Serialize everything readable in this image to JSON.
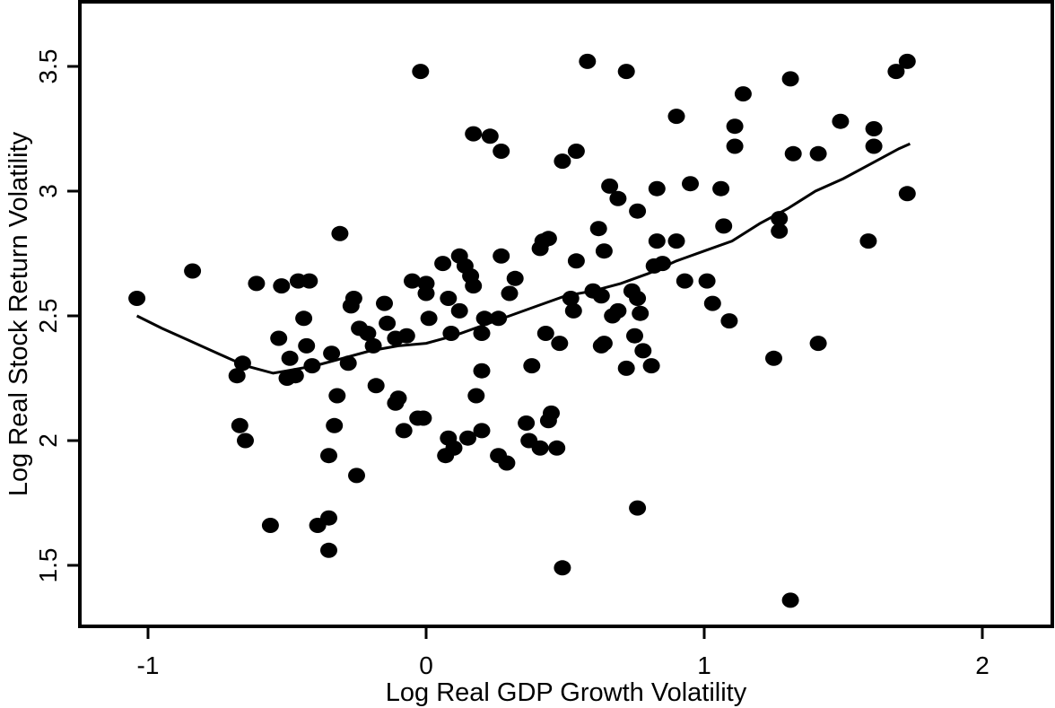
{
  "chart_data": {
    "type": "scatter",
    "title": "",
    "xlabel": "Log Real GDP Growth Volatility",
    "ylabel": "Log Real Stock Return Volatility",
    "xlim": [
      -1.25,
      2.25
    ],
    "ylim": [
      1.3,
      3.75
    ],
    "xticks": [
      -1,
      0,
      1,
      2
    ],
    "xtick_labels": [
      "-1",
      "0",
      "1",
      "2"
    ],
    "yticks": [
      1.5,
      2,
      2.5,
      3,
      3.5
    ],
    "ytick_labels": [
      "1.5",
      "2",
      "2.5",
      "3",
      "3.5"
    ],
    "grid": false,
    "legend": "none",
    "marker_color": "#000000",
    "points": [
      [
        -1.04,
        2.57
      ],
      [
        -0.84,
        2.68
      ],
      [
        -0.68,
        2.26
      ],
      [
        -0.67,
        2.06
      ],
      [
        -0.66,
        2.31
      ],
      [
        -0.65,
        2.0
      ],
      [
        -0.61,
        2.63
      ],
      [
        -0.56,
        1.66
      ],
      [
        -0.53,
        2.41
      ],
      [
        -0.52,
        2.62
      ],
      [
        -0.5,
        2.25
      ],
      [
        -0.49,
        2.33
      ],
      [
        -0.47,
        2.26
      ],
      [
        -0.46,
        2.64
      ],
      [
        -0.44,
        2.49
      ],
      [
        -0.43,
        2.38
      ],
      [
        -0.42,
        2.64
      ],
      [
        -0.41,
        2.3
      ],
      [
        -0.39,
        1.66
      ],
      [
        -0.35,
        1.94
      ],
      [
        -0.35,
        1.69
      ],
      [
        -0.35,
        1.56
      ],
      [
        -0.34,
        2.35
      ],
      [
        -0.33,
        2.06
      ],
      [
        -0.32,
        2.18
      ],
      [
        -0.31,
        2.83
      ],
      [
        -0.28,
        2.31
      ],
      [
        -0.27,
        2.54
      ],
      [
        -0.26,
        2.57
      ],
      [
        -0.25,
        1.86
      ],
      [
        -0.24,
        2.45
      ],
      [
        -0.21,
        2.43
      ],
      [
        -0.19,
        2.38
      ],
      [
        -0.18,
        2.22
      ],
      [
        -0.15,
        2.55
      ],
      [
        -0.14,
        2.47
      ],
      [
        -0.11,
        2.41
      ],
      [
        -0.11,
        2.15
      ],
      [
        -0.1,
        2.17
      ],
      [
        -0.08,
        2.04
      ],
      [
        -0.07,
        2.42
      ],
      [
        -0.05,
        2.64
      ],
      [
        -0.03,
        2.09
      ],
      [
        -0.02,
        3.48
      ],
      [
        -0.01,
        2.09
      ],
      [
        0.0,
        2.63
      ],
      [
        0.0,
        2.59
      ],
      [
        0.01,
        2.49
      ],
      [
        0.06,
        2.71
      ],
      [
        0.07,
        1.94
      ],
      [
        0.08,
        2.01
      ],
      [
        0.08,
        2.57
      ],
      [
        0.09,
        2.43
      ],
      [
        0.1,
        1.97
      ],
      [
        0.12,
        2.52
      ],
      [
        0.12,
        2.74
      ],
      [
        0.14,
        2.7
      ],
      [
        0.15,
        2.01
      ],
      [
        0.16,
        2.66
      ],
      [
        0.17,
        2.62
      ],
      [
        0.17,
        3.23
      ],
      [
        0.18,
        2.18
      ],
      [
        0.2,
        2.04
      ],
      [
        0.2,
        2.43
      ],
      [
        0.2,
        2.28
      ],
      [
        0.21,
        2.49
      ],
      [
        0.23,
        3.22
      ],
      [
        0.26,
        2.49
      ],
      [
        0.26,
        1.94
      ],
      [
        0.27,
        2.74
      ],
      [
        0.27,
        3.16
      ],
      [
        0.29,
        1.91
      ],
      [
        0.3,
        2.59
      ],
      [
        0.32,
        2.65
      ],
      [
        0.36,
        2.07
      ],
      [
        0.37,
        2.0
      ],
      [
        0.38,
        2.3
      ],
      [
        0.41,
        1.97
      ],
      [
        0.41,
        2.77
      ],
      [
        0.42,
        2.8
      ],
      [
        0.43,
        2.43
      ],
      [
        0.44,
        2.81
      ],
      [
        0.44,
        2.08
      ],
      [
        0.45,
        2.11
      ],
      [
        0.47,
        1.97
      ],
      [
        0.48,
        2.39
      ],
      [
        0.49,
        1.49
      ],
      [
        0.49,
        3.12
      ],
      [
        0.52,
        2.57
      ],
      [
        0.53,
        2.52
      ],
      [
        0.54,
        2.72
      ],
      [
        0.54,
        3.16
      ],
      [
        0.58,
        3.52
      ],
      [
        0.6,
        2.6
      ],
      [
        0.62,
        2.85
      ],
      [
        0.63,
        2.58
      ],
      [
        0.63,
        2.38
      ],
      [
        0.64,
        2.76
      ],
      [
        0.64,
        2.39
      ],
      [
        0.66,
        3.02
      ],
      [
        0.67,
        2.5
      ],
      [
        0.69,
        2.97
      ],
      [
        0.69,
        2.52
      ],
      [
        0.72,
        3.48
      ],
      [
        0.72,
        2.29
      ],
      [
        0.74,
        2.6
      ],
      [
        0.75,
        2.42
      ],
      [
        0.76,
        2.57
      ],
      [
        0.76,
        2.92
      ],
      [
        0.76,
        1.73
      ],
      [
        0.77,
        2.51
      ],
      [
        0.78,
        2.36
      ],
      [
        0.81,
        2.3
      ],
      [
        0.82,
        2.7
      ],
      [
        0.83,
        2.8
      ],
      [
        0.83,
        3.01
      ],
      [
        0.85,
        2.71
      ],
      [
        0.9,
        3.3
      ],
      [
        0.9,
        2.8
      ],
      [
        0.93,
        2.64
      ],
      [
        0.95,
        3.03
      ],
      [
        1.01,
        2.64
      ],
      [
        1.03,
        2.55
      ],
      [
        1.06,
        3.01
      ],
      [
        1.07,
        2.86
      ],
      [
        1.09,
        2.48
      ],
      [
        1.11,
        3.26
      ],
      [
        1.11,
        3.18
      ],
      [
        1.14,
        3.39
      ],
      [
        1.25,
        2.33
      ],
      [
        1.27,
        2.89
      ],
      [
        1.27,
        2.84
      ],
      [
        1.31,
        3.45
      ],
      [
        1.31,
        1.36
      ],
      [
        1.32,
        3.15
      ],
      [
        1.41,
        3.15
      ],
      [
        1.41,
        2.39
      ],
      [
        1.49,
        3.28
      ],
      [
        1.59,
        2.8
      ],
      [
        1.61,
        3.25
      ],
      [
        1.61,
        3.18
      ],
      [
        1.69,
        3.48
      ],
      [
        1.73,
        3.52
      ],
      [
        1.73,
        2.99
      ]
    ],
    "smoother": {
      "name": "",
      "x": [
        -1.04,
        -0.95,
        -0.85,
        -0.75,
        -0.65,
        -0.55,
        -0.5,
        -0.4,
        -0.3,
        -0.2,
        -0.1,
        0.0,
        0.1,
        0.2,
        0.3,
        0.4,
        0.5,
        0.6,
        0.7,
        0.8,
        0.9,
        1.0,
        1.1,
        1.2,
        1.3,
        1.4,
        1.5,
        1.6,
        1.7,
        1.74
      ],
      "y": [
        2.5,
        2.45,
        2.4,
        2.35,
        2.3,
        2.27,
        2.28,
        2.3,
        2.33,
        2.36,
        2.38,
        2.39,
        2.42,
        2.46,
        2.5,
        2.54,
        2.58,
        2.6,
        2.63,
        2.67,
        2.72,
        2.76,
        2.8,
        2.87,
        2.93,
        3.0,
        3.05,
        3.11,
        3.17,
        3.19
      ]
    }
  }
}
